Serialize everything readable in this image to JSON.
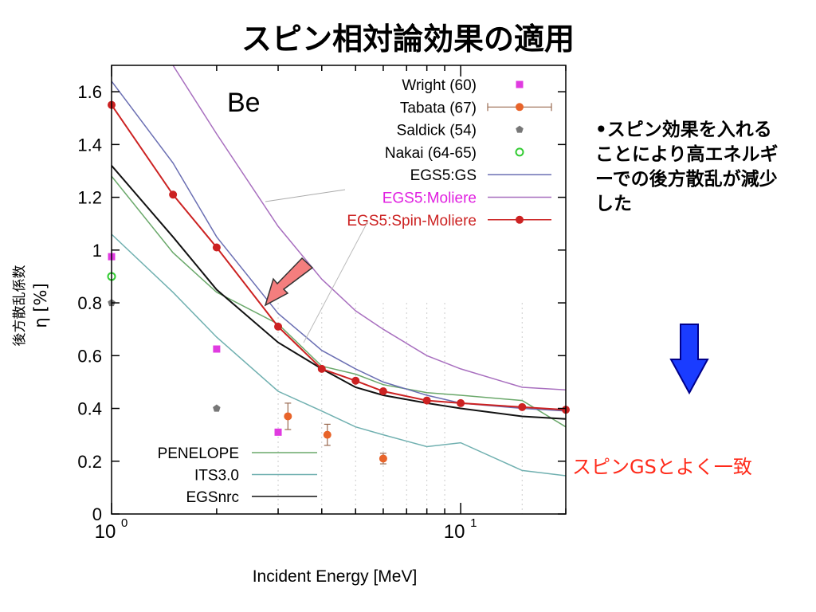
{
  "slide": {
    "title": "スピン相対論効果の適用",
    "bullet": "•スピン効果を入れることにより高エネルギーでの後方散乱が減少した",
    "note": "スピンGSとよく一致"
  },
  "chart_data": {
    "type": "line",
    "title": "",
    "annotation": "Be",
    "xlabel": "Incident Energy [MeV]",
    "ylabel_lines": [
      "後方散乱係数",
      "η [%]"
    ],
    "xscale": "log",
    "xlim": [
      1,
      20
    ],
    "ylim": [
      0,
      1.7
    ],
    "x_ticks": [
      {
        "value": 1,
        "base": "10",
        "exp": "0"
      },
      {
        "value": 10,
        "base": "10",
        "exp": "1"
      }
    ],
    "y_ticks": [
      0,
      0.2,
      0.4,
      0.6,
      0.8,
      1,
      1.2,
      1.4,
      1.6
    ],
    "y_tick_labels": [
      "0",
      "0.2",
      "0.4",
      "0.6",
      "0.8",
      "1",
      "1.2",
      "1.4",
      "1.6"
    ],
    "colors": {
      "wright": "#e03be0",
      "tabata": "#e8642a",
      "saldick": "#777777",
      "nakai": "#33cc33",
      "gs": "#6b6fb3",
      "moliere": "#a86fbf",
      "spin": "#cc2222",
      "penelope": "#6aa86a",
      "its": "#70b0b0",
      "egsnrc": "#111111",
      "arrow": "#f47e7e",
      "down_arrow": "#1a3cff"
    },
    "series": [
      {
        "key": "wright",
        "name": "Wright (60)",
        "kind": "marker",
        "marker": "square",
        "points": [
          [
            1,
            0.975
          ],
          [
            2,
            0.625
          ],
          [
            3,
            0.31
          ]
        ]
      },
      {
        "key": "tabata",
        "name": "Tabata (67)",
        "kind": "errorbar",
        "marker": "circle",
        "points": [
          [
            3.2,
            0.37,
            0.05
          ],
          [
            4.15,
            0.3,
            0.04
          ],
          [
            6.0,
            0.21,
            0.02
          ]
        ]
      },
      {
        "key": "saldick",
        "name": "Saldick (54)",
        "kind": "marker",
        "marker": "pentagon",
        "points": [
          [
            1,
            0.8
          ],
          [
            2,
            0.4
          ]
        ]
      },
      {
        "key": "nakai",
        "name": "Nakai (64-65)",
        "kind": "marker",
        "marker": "open-circle",
        "points": [
          [
            1,
            0.9
          ]
        ]
      },
      {
        "key": "gs",
        "name": "EGS5:GS",
        "kind": "line",
        "points": [
          [
            1,
            1.64
          ],
          [
            1.5,
            1.33
          ],
          [
            2,
            1.05
          ],
          [
            3,
            0.76
          ],
          [
            4,
            0.62
          ],
          [
            5,
            0.55
          ],
          [
            6,
            0.5
          ],
          [
            8,
            0.45
          ],
          [
            10,
            0.42
          ],
          [
            15,
            0.4
          ],
          [
            20,
            0.39
          ]
        ]
      },
      {
        "key": "moliere",
        "name": "EGS5:Moliere",
        "kind": "line",
        "label_color": "#e020e0",
        "points": [
          [
            1.5,
            1.7
          ],
          [
            2,
            1.44
          ],
          [
            3,
            1.09
          ],
          [
            4,
            0.89
          ],
          [
            5,
            0.77
          ],
          [
            6,
            0.7
          ],
          [
            8,
            0.6
          ],
          [
            10,
            0.55
          ],
          [
            15,
            0.48
          ],
          [
            20,
            0.47
          ]
        ]
      },
      {
        "key": "spin",
        "name": "EGS5:Spin-Moliere",
        "kind": "line-marker",
        "label_color": "#cc2222",
        "points": [
          [
            1,
            1.55
          ],
          [
            1.5,
            1.21
          ],
          [
            2,
            1.01
          ],
          [
            3,
            0.71
          ],
          [
            4,
            0.55
          ],
          [
            5,
            0.505
          ],
          [
            6,
            0.465
          ],
          [
            8,
            0.43
          ],
          [
            10,
            0.42
          ],
          [
            15,
            0.405
          ],
          [
            20,
            0.395
          ]
        ]
      },
      {
        "key": "penelope",
        "name": "PENELOPE",
        "kind": "line",
        "legend": "bottom",
        "points": [
          [
            1,
            1.28
          ],
          [
            1.5,
            0.99
          ],
          [
            2,
            0.84
          ],
          [
            3,
            0.72
          ],
          [
            4,
            0.56
          ],
          [
            5,
            0.53
          ],
          [
            6,
            0.49
          ],
          [
            8,
            0.46
          ],
          [
            10,
            0.45
          ],
          [
            15,
            0.43
          ],
          [
            20,
            0.33
          ]
        ]
      },
      {
        "key": "its",
        "name": "ITS3.0",
        "kind": "line",
        "legend": "bottom",
        "points": [
          [
            1,
            1.06
          ],
          [
            1.5,
            0.84
          ],
          [
            2,
            0.67
          ],
          [
            3,
            0.465
          ],
          [
            4,
            0.39
          ],
          [
            5,
            0.33
          ],
          [
            6,
            0.3
          ],
          [
            8,
            0.255
          ],
          [
            10,
            0.27
          ],
          [
            15,
            0.165
          ],
          [
            20,
            0.145
          ]
        ]
      },
      {
        "key": "egsnrc",
        "name": "EGSnrc",
        "kind": "line",
        "legend": "bottom",
        "points": [
          [
            1,
            1.32
          ],
          [
            1.5,
            1.05
          ],
          [
            2,
            0.85
          ],
          [
            3,
            0.65
          ],
          [
            4,
            0.55
          ],
          [
            5,
            0.48
          ],
          [
            6,
            0.45
          ],
          [
            8,
            0.42
          ],
          [
            10,
            0.4
          ],
          [
            15,
            0.37
          ],
          [
            20,
            0.36
          ]
        ]
      }
    ]
  }
}
